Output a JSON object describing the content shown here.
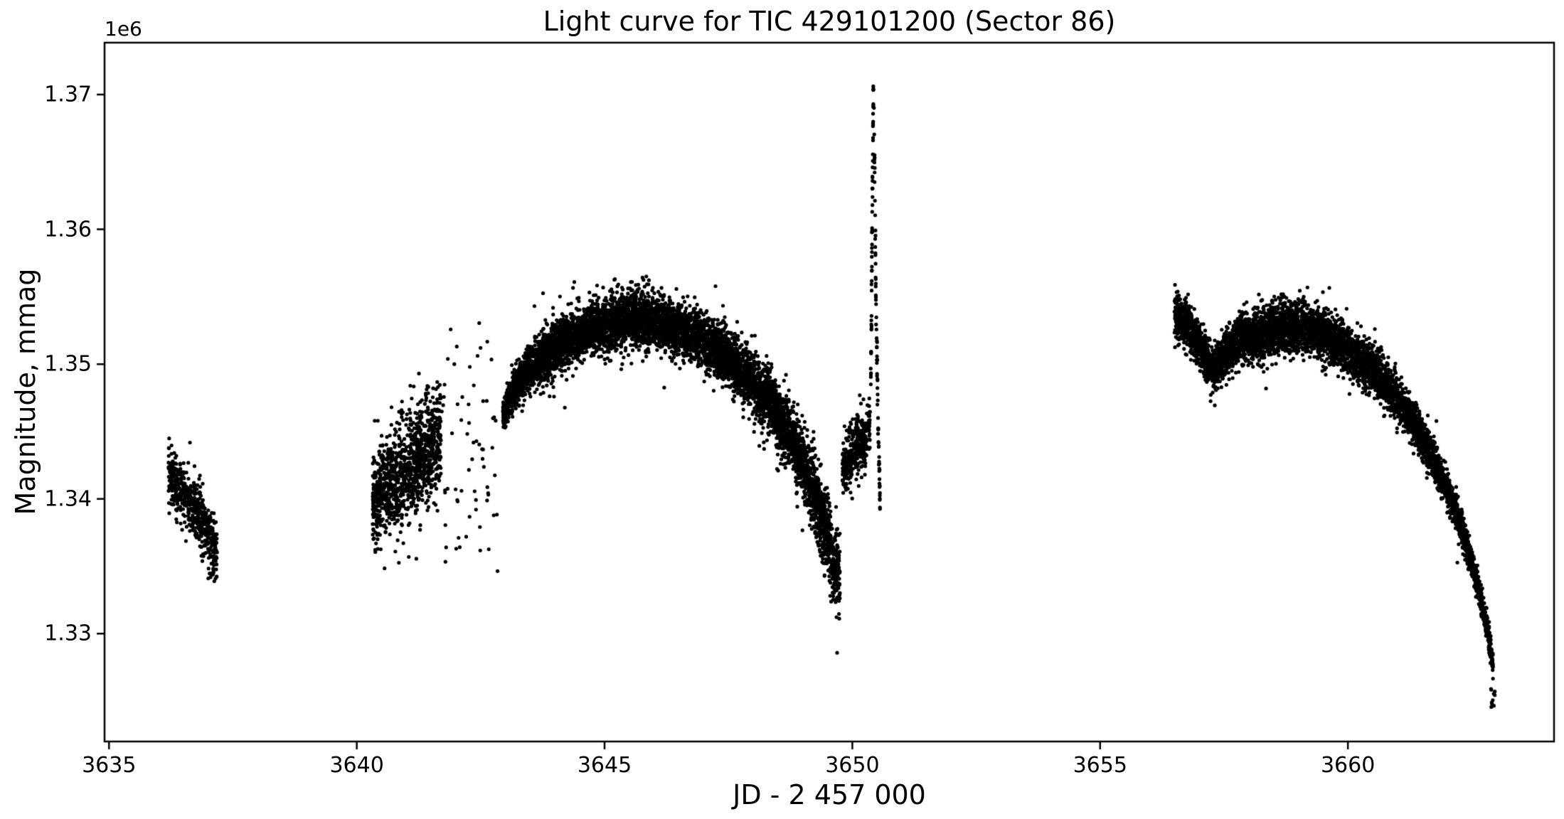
{
  "chart_data": {
    "type": "scatter",
    "title": "Light curve for TIC 429101200 (Sector 86)",
    "xlabel": "JD - 2 457 000",
    "ylabel": "Magnitude, mmag",
    "offset_text": "1e6",
    "grid": false,
    "legend": null,
    "marker_color": "#000000",
    "marker_radius": 2.6,
    "xlim": [
      3634.91,
      3664.16
    ],
    "ylim": [
      1322000,
      1373850
    ],
    "xticks": [
      3635,
      3640,
      3645,
      3650,
      3655,
      3660
    ],
    "xtick_labels": [
      "3635",
      "3640",
      "3645",
      "3650",
      "3655",
      "3660"
    ],
    "yticks": [
      1330000,
      1340000,
      1350000,
      1360000,
      1370000
    ],
    "ytick_labels": [
      "1.33",
      "1.34",
      "1.35",
      "1.36",
      "1.37"
    ],
    "seed": 7,
    "segments": [
      {
        "name": "clump-3636",
        "n": 520,
        "anchors": [
          [
            3636.2,
            1341900
          ],
          [
            3636.45,
            1340600
          ],
          [
            3636.75,
            1339300
          ],
          [
            3637.0,
            1337600
          ],
          [
            3637.18,
            1335900
          ]
        ],
        "sigma": [
          1000,
          1100,
          1100,
          1000,
          900
        ],
        "outliers": {
          "n": 14,
          "scale": 2.2
        }
      },
      {
        "name": "clump-3636-low-tail",
        "type": "uniform",
        "n": 16,
        "x": [
          3637.0,
          3637.2
        ],
        "y": [
          1333800,
          1336200
        ]
      },
      {
        "name": "blob-3640",
        "n": 1050,
        "anchors": [
          [
            3640.32,
            1340000
          ],
          [
            3640.6,
            1340800
          ],
          [
            3640.9,
            1341600
          ],
          [
            3641.2,
            1342600
          ],
          [
            3641.45,
            1343500
          ],
          [
            3641.7,
            1344600
          ]
        ],
        "sigma": [
          1500,
          1700,
          1800,
          1800,
          1700,
          1500
        ],
        "outliers": {
          "n": 40,
          "scale": 1.9
        }
      },
      {
        "name": "blob-upper-stragglers",
        "type": "uniform",
        "n": 40,
        "x": [
          3640.9,
          3641.8
        ],
        "y": [
          1345600,
          1348800
        ]
      },
      {
        "name": "sparse-column-3642",
        "type": "uniform",
        "n": 62,
        "x": [
          3641.75,
          3642.85
        ],
        "y": [
          1334200,
          1353200
        ]
      },
      {
        "name": "main-arc",
        "n": 6800,
        "anchors": [
          [
            3642.95,
            1346200
          ],
          [
            3643.15,
            1348000
          ],
          [
            3643.5,
            1349800
          ],
          [
            3644.0,
            1351200
          ],
          [
            3644.7,
            1352600
          ],
          [
            3645.5,
            1353400
          ],
          [
            3646.2,
            1353100
          ],
          [
            3647.0,
            1351700
          ],
          [
            3647.7,
            1349900
          ],
          [
            3648.3,
            1347300
          ],
          [
            3648.8,
            1344300
          ],
          [
            3649.2,
            1340800
          ],
          [
            3649.55,
            1336500
          ],
          [
            3649.75,
            1334000
          ]
        ],
        "sigma": [
          550,
          700,
          800,
          900,
          950,
          950,
          950,
          950,
          1000,
          1100,
          1200,
          1400,
          1600,
          1500
        ],
        "outliers": {
          "n": 130,
          "scale": 2.4
        }
      },
      {
        "name": "pre-flare-recovery-clump",
        "n": 380,
        "anchors": [
          [
            3649.8,
            1342300
          ],
          [
            3650.05,
            1343600
          ],
          [
            3650.25,
            1344600
          ],
          [
            3650.36,
            1345700
          ]
        ],
        "sigma": [
          1000,
          1100,
          1100,
          900
        ],
        "outliers": {
          "n": 10,
          "scale": 1.8
        }
      },
      {
        "name": "flare-spike-rise",
        "n": 55,
        "anchors": [
          [
            3650.37,
            1347500
          ],
          [
            3650.385,
            1353500
          ],
          [
            3650.4,
            1360000
          ],
          [
            3650.415,
            1366500
          ],
          [
            3650.425,
            1370800
          ]
        ],
        "sigma": [
          700,
          900,
          900,
          800,
          500
        ]
      },
      {
        "name": "flare-spike-decay",
        "n": 75,
        "anchors": [
          [
            3650.435,
            1370500
          ],
          [
            3650.45,
            1364000
          ],
          [
            3650.47,
            1356500
          ],
          [
            3650.5,
            1349500
          ],
          [
            3650.53,
            1344000
          ],
          [
            3650.56,
            1339800
          ]
        ],
        "sigma": [
          600,
          1000,
          1100,
          1000,
          800,
          600
        ]
      },
      {
        "name": "second-orbit-curve",
        "n": 5600,
        "anchors": [
          [
            3656.5,
            1353700
          ],
          [
            3656.65,
            1353200
          ],
          [
            3656.85,
            1352300
          ],
          [
            3657.05,
            1351000
          ],
          [
            3657.28,
            1349600
          ],
          [
            3657.5,
            1350700
          ],
          [
            3657.8,
            1351700
          ],
          [
            3658.2,
            1352200
          ],
          [
            3658.7,
            1352700
          ],
          [
            3659.1,
            1352800
          ],
          [
            3659.5,
            1352200
          ],
          [
            3659.9,
            1351300
          ],
          [
            3660.3,
            1350200
          ],
          [
            3660.7,
            1348800
          ],
          [
            3661.1,
            1346900
          ],
          [
            3661.5,
            1344600
          ],
          [
            3661.9,
            1341600
          ],
          [
            3662.2,
            1338900
          ],
          [
            3662.5,
            1335300
          ],
          [
            3662.7,
            1332300
          ],
          [
            3662.85,
            1329600
          ],
          [
            3662.93,
            1327600
          ]
        ],
        "sigma": [
          1000,
          900,
          800,
          800,
          700,
          800,
          900,
          950,
          950,
          950,
          950,
          900,
          900,
          850,
          800,
          750,
          700,
          650,
          600,
          550,
          450,
          350
        ],
        "outliers": {
          "n": 70,
          "scale": 2.0
        }
      },
      {
        "name": "second-orbit-end-dots",
        "type": "uniform",
        "n": 10,
        "x": [
          3662.88,
          3662.97
        ],
        "y": [
          1324300,
          1326400
        ]
      }
    ]
  }
}
